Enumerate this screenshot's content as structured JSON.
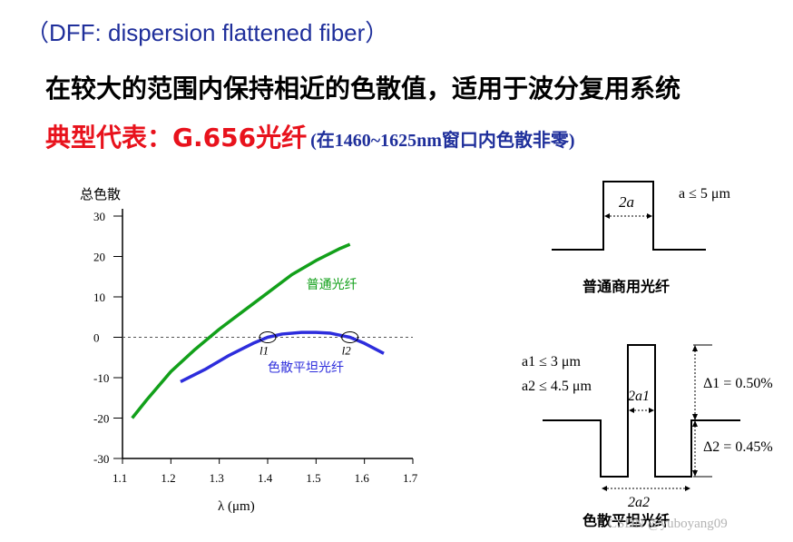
{
  "header": {
    "title": "（DFF: dispersion flattened fiber）",
    "line1": "在较大的范围内保持相近的色散值，适用于波分复用系统",
    "line2_lead": "典型代表：G.656光纤",
    "line2_note": "(在1460~1625nm窗口内色散非零)"
  },
  "chart_data": {
    "type": "line",
    "ylabel": "总色散",
    "xlabel": "λ (μm)",
    "xlim": [
      1.1,
      1.7
    ],
    "ylim": [
      -30,
      30
    ],
    "x_ticks": [
      "1.1",
      "1.2",
      "1.3",
      "1.4",
      "1.5",
      "1.6",
      "1.7"
    ],
    "y_ticks": [
      "30",
      "20",
      "10",
      "0",
      "-10",
      "-20",
      "-30"
    ],
    "zero_line": "dashed",
    "series": [
      {
        "name": "普通光纤",
        "color": "#12a01a",
        "x": [
          1.12,
          1.15,
          1.2,
          1.25,
          1.28,
          1.3,
          1.35,
          1.4,
          1.45,
          1.5,
          1.55,
          1.57
        ],
        "y": [
          -20,
          -15.5,
          -8.5,
          -3,
          0,
          2,
          6.5,
          11,
          15.5,
          19,
          22,
          23
        ]
      },
      {
        "name": "色散平坦光纤",
        "color": "#2d2ddc",
        "x": [
          1.22,
          1.27,
          1.32,
          1.37,
          1.4,
          1.43,
          1.47,
          1.5,
          1.53,
          1.57,
          1.6,
          1.64
        ],
        "y": [
          -11,
          -8,
          -4.5,
          -1.5,
          0,
          0.8,
          1.2,
          1.2,
          1,
          0,
          -1.5,
          -4
        ]
      }
    ],
    "annotations": [
      "l1",
      "l2"
    ]
  },
  "step_profile": {
    "label_width": "2a",
    "condition": "a ≤ 5 μm",
    "caption": "普通商用光纤"
  },
  "w_profile": {
    "a1": "a1 ≤ 3 μm",
    "a2": "a2 ≤ 4.5 μm",
    "label_inner": "2a1",
    "label_outer": "2a2",
    "delta1": "Δ1 = 0.50%",
    "delta2": "Δ2 = 0.45%",
    "caption": "色散平坦光纤"
  },
  "watermark": "CSDN @yuboyang09"
}
